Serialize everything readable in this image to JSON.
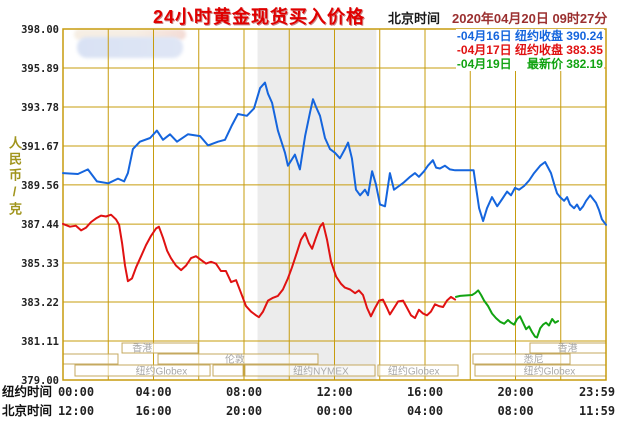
{
  "header": {
    "title": "24小时黄金现货买入价格",
    "timezone_label": "北京时间",
    "datetime": "2020年04月20日 09时27分"
  },
  "legend": {
    "items": [
      {
        "text": "-04月16日 纽约收盘 390.24",
        "color": "#1565dd"
      },
      {
        "text": "-04月17日 纽约收盘 383.35",
        "color": "#e01212"
      },
      {
        "text": "-04月19日　 最新价 382.19",
        "color": "#12a312"
      }
    ]
  },
  "y_axis": {
    "unit_label": "人民币/克",
    "tick_labels": [
      "398.00",
      "395.89",
      "393.78",
      "391.67",
      "389.56",
      "387.44",
      "385.33",
      "383.22",
      "381.11",
      "379.00"
    ]
  },
  "x_axis": {
    "row1_label": "纽约时间",
    "row2_label": "北京时间",
    "row1_ticks": [
      "00:00",
      "04:00",
      "08:00",
      "12:00",
      "16:00",
      "20:00",
      "23:59"
    ],
    "row2_ticks": [
      "12:00",
      "16:00",
      "20:00",
      "00:00",
      "04:00",
      "08:00",
      "11:59"
    ]
  },
  "sessions": [
    {
      "row": 1,
      "start": 2.61,
      "end": 5.97,
      "label": "香港",
      "label_h": 3.5
    },
    {
      "row": 1,
      "start": 20.64,
      "end": 24,
      "label": "香港",
      "label_h": 22.3
    },
    {
      "row": 2,
      "start": 0,
      "end": 2.43,
      "label": ""
    },
    {
      "row": 2,
      "start": 4.2,
      "end": 11.27,
      "label": "伦敦",
      "label_h": 7.6
    },
    {
      "row": 2,
      "start": 18.12,
      "end": 22.41,
      "label": "悉尼",
      "label_h": 20.8
    },
    {
      "row": 3,
      "start": 0.53,
      "end": 6.5,
      "label": "纽约Globex",
      "label_h": 4.35
    },
    {
      "row": 3,
      "start": 6.63,
      "end": 7.96,
      "label": ""
    },
    {
      "row": 3,
      "start": 8.04,
      "end": 13.79,
      "label": "纽约NYMEX",
      "label_h": 11.4
    },
    {
      "row": 3,
      "start": 13.92,
      "end": 17.46,
      "label": "纽约Globex",
      "label_h": 15.5
    },
    {
      "row": 3,
      "start": 18.21,
      "end": 24,
      "label": "纽约Globex",
      "label_h": 21.5
    }
  ],
  "chart_data": {
    "type": "line",
    "title": "24小时黄金现货买入价格",
    "xlabel": "纽约时间 (hours 0-24)",
    "ylabel": "人民币/克",
    "xlim": [
      0,
      24
    ],
    "ylim": [
      379.0,
      398.0
    ],
    "y_ticks": [
      398.0,
      395.89,
      393.78,
      391.67,
      389.56,
      387.44,
      385.33,
      383.22,
      381.11,
      379.0
    ],
    "grid_x_step_hours": 2,
    "grid_color": "#c79c0e",
    "band_color": "#ececec",
    "shaded_band_hours": [
      8.6,
      13.85
    ],
    "legend_position": "top-right",
    "series": [
      {
        "name": "04月16日",
        "label": "纽约收盘",
        "value": 390.24,
        "color": "#1565dd",
        "points": [
          [
            0,
            390.2
          ],
          [
            0.66,
            390.15
          ],
          [
            1.1,
            390.4
          ],
          [
            1.5,
            389.75
          ],
          [
            2.0,
            389.65
          ],
          [
            2.43,
            389.9
          ],
          [
            2.7,
            389.75
          ],
          [
            2.87,
            390.2
          ],
          [
            3.09,
            391.5
          ],
          [
            3.4,
            391.9
          ],
          [
            3.85,
            392.1
          ],
          [
            4.15,
            392.5
          ],
          [
            4.42,
            392.0
          ],
          [
            4.73,
            392.3
          ],
          [
            5.04,
            391.9
          ],
          [
            5.52,
            392.3
          ],
          [
            6.06,
            392.2
          ],
          [
            6.41,
            391.7
          ],
          [
            6.85,
            391.9
          ],
          [
            7.16,
            392.0
          ],
          [
            7.47,
            392.8
          ],
          [
            7.73,
            393.4
          ],
          [
            8.13,
            393.3
          ],
          [
            8.44,
            393.7
          ],
          [
            8.71,
            394.8
          ],
          [
            8.93,
            395.1
          ],
          [
            9.06,
            394.5
          ],
          [
            9.24,
            394.0
          ],
          [
            9.5,
            392.5
          ],
          [
            9.81,
            391.3
          ],
          [
            9.94,
            390.6
          ],
          [
            10.25,
            391.2
          ],
          [
            10.47,
            390.4
          ],
          [
            10.7,
            392.2
          ],
          [
            10.92,
            393.5
          ],
          [
            11.05,
            394.2
          ],
          [
            11.18,
            393.8
          ],
          [
            11.36,
            393.3
          ],
          [
            11.58,
            392.1
          ],
          [
            11.8,
            391.5
          ],
          [
            12.02,
            391.3
          ],
          [
            12.24,
            391.0
          ],
          [
            12.46,
            391.5
          ],
          [
            12.6,
            391.85
          ],
          [
            12.77,
            391.0
          ],
          [
            12.95,
            389.3
          ],
          [
            13.13,
            389.0
          ],
          [
            13.35,
            389.3
          ],
          [
            13.48,
            389.0
          ],
          [
            13.66,
            390.3
          ],
          [
            13.83,
            389.6
          ],
          [
            14.01,
            388.5
          ],
          [
            14.23,
            388.4
          ],
          [
            14.45,
            390.2
          ],
          [
            14.63,
            389.3
          ],
          [
            14.85,
            389.5
          ],
          [
            15.07,
            389.7
          ],
          [
            15.34,
            390.0
          ],
          [
            15.56,
            390.2
          ],
          [
            15.73,
            390.0
          ],
          [
            15.96,
            390.3
          ],
          [
            16.13,
            390.6
          ],
          [
            16.35,
            390.9
          ],
          [
            16.49,
            390.5
          ],
          [
            16.66,
            390.45
          ],
          [
            16.88,
            390.6
          ],
          [
            17.1,
            390.4
          ],
          [
            17.33,
            390.35
          ],
          [
            18.15,
            390.35
          ],
          [
            18.26,
            389.4
          ],
          [
            18.39,
            388.3
          ],
          [
            18.57,
            387.6
          ],
          [
            18.74,
            388.3
          ],
          [
            18.96,
            388.9
          ],
          [
            19.19,
            388.4
          ],
          [
            19.41,
            388.8
          ],
          [
            19.63,
            389.2
          ],
          [
            19.8,
            389.0
          ],
          [
            19.98,
            389.4
          ],
          [
            20.16,
            389.3
          ],
          [
            20.38,
            389.5
          ],
          [
            20.6,
            389.8
          ],
          [
            20.82,
            390.2
          ],
          [
            21.09,
            390.6
          ],
          [
            21.31,
            390.8
          ],
          [
            21.44,
            390.5
          ],
          [
            21.57,
            390.2
          ],
          [
            21.71,
            389.6
          ],
          [
            21.84,
            389.1
          ],
          [
            21.97,
            388.9
          ],
          [
            22.15,
            388.7
          ],
          [
            22.28,
            388.9
          ],
          [
            22.41,
            388.5
          ],
          [
            22.59,
            388.3
          ],
          [
            22.72,
            388.5
          ],
          [
            22.85,
            388.2
          ],
          [
            22.99,
            388.4
          ],
          [
            23.12,
            388.7
          ],
          [
            23.3,
            389.0
          ],
          [
            23.43,
            388.8
          ],
          [
            23.56,
            388.6
          ],
          [
            23.69,
            388.2
          ],
          [
            23.82,
            387.7
          ],
          [
            24,
            387.4
          ]
        ]
      },
      {
        "name": "04月17日",
        "label": "纽约收盘",
        "value": 383.35,
        "color": "#e01212",
        "points": [
          [
            0,
            387.45
          ],
          [
            0.31,
            387.3
          ],
          [
            0.57,
            387.35
          ],
          [
            0.8,
            387.1
          ],
          [
            1.02,
            387.25
          ],
          [
            1.24,
            387.55
          ],
          [
            1.46,
            387.75
          ],
          [
            1.68,
            387.9
          ],
          [
            1.9,
            387.85
          ],
          [
            2.12,
            387.95
          ],
          [
            2.34,
            387.7
          ],
          [
            2.48,
            387.4
          ],
          [
            2.61,
            386.4
          ],
          [
            2.74,
            385.2
          ],
          [
            2.87,
            384.35
          ],
          [
            3.05,
            384.5
          ],
          [
            3.23,
            385.1
          ],
          [
            3.45,
            385.7
          ],
          [
            3.67,
            386.3
          ],
          [
            3.89,
            386.8
          ],
          [
            4.11,
            387.2
          ],
          [
            4.24,
            387.3
          ],
          [
            4.42,
            386.7
          ],
          [
            4.6,
            386.0
          ],
          [
            4.77,
            385.6
          ],
          [
            4.99,
            385.2
          ],
          [
            5.22,
            384.95
          ],
          [
            5.44,
            385.2
          ],
          [
            5.66,
            385.6
          ],
          [
            5.88,
            385.7
          ],
          [
            6.1,
            385.5
          ],
          [
            6.32,
            385.3
          ],
          [
            6.54,
            385.4
          ],
          [
            6.76,
            385.3
          ],
          [
            6.98,
            384.9
          ],
          [
            7.2,
            384.9
          ],
          [
            7.43,
            384.3
          ],
          [
            7.65,
            384.4
          ],
          [
            7.87,
            383.7
          ],
          [
            8.09,
            383.0
          ],
          [
            8.31,
            382.7
          ],
          [
            8.53,
            382.5
          ],
          [
            8.66,
            382.4
          ],
          [
            8.84,
            382.7
          ],
          [
            9.06,
            383.3
          ],
          [
            9.28,
            383.45
          ],
          [
            9.5,
            383.55
          ],
          [
            9.72,
            383.9
          ],
          [
            9.94,
            384.5
          ],
          [
            10.12,
            385.1
          ],
          [
            10.34,
            385.9
          ],
          [
            10.52,
            386.6
          ],
          [
            10.7,
            386.95
          ],
          [
            10.87,
            386.4
          ],
          [
            11.01,
            386.1
          ],
          [
            11.18,
            386.7
          ],
          [
            11.36,
            387.3
          ],
          [
            11.49,
            387.5
          ],
          [
            11.67,
            386.6
          ],
          [
            11.85,
            385.4
          ],
          [
            12.07,
            384.6
          ],
          [
            12.29,
            384.2
          ],
          [
            12.46,
            384.0
          ],
          [
            12.69,
            383.9
          ],
          [
            12.91,
            383.7
          ],
          [
            13.08,
            383.85
          ],
          [
            13.26,
            383.6
          ],
          [
            13.44,
            382.9
          ],
          [
            13.61,
            382.45
          ],
          [
            13.79,
            382.9
          ],
          [
            13.97,
            383.3
          ],
          [
            14.14,
            383.35
          ],
          [
            14.32,
            382.9
          ],
          [
            14.45,
            382.55
          ],
          [
            14.63,
            382.9
          ],
          [
            14.81,
            383.25
          ],
          [
            15.03,
            383.3
          ],
          [
            15.21,
            382.9
          ],
          [
            15.38,
            382.5
          ],
          [
            15.56,
            382.35
          ],
          [
            15.73,
            382.8
          ],
          [
            15.91,
            382.6
          ],
          [
            16.09,
            382.5
          ],
          [
            16.26,
            382.7
          ],
          [
            16.44,
            383.1
          ],
          [
            16.62,
            383.0
          ],
          [
            16.8,
            382.95
          ],
          [
            16.97,
            383.3
          ],
          [
            17.15,
            383.5
          ],
          [
            17.33,
            383.35
          ]
        ]
      },
      {
        "name": "04月19日",
        "label": "最新价",
        "value": 382.19,
        "color": "#12a312",
        "points": [
          [
            17.37,
            383.5
          ],
          [
            17.55,
            383.55
          ],
          [
            18.08,
            383.6
          ],
          [
            18.21,
            383.7
          ],
          [
            18.35,
            383.85
          ],
          [
            18.48,
            383.6
          ],
          [
            18.61,
            383.3
          ],
          [
            18.79,
            383.0
          ],
          [
            18.96,
            382.6
          ],
          [
            19.14,
            382.35
          ],
          [
            19.32,
            382.15
          ],
          [
            19.5,
            382.05
          ],
          [
            19.67,
            382.25
          ],
          [
            19.8,
            382.1
          ],
          [
            19.94,
            382.0
          ],
          [
            20.07,
            382.3
          ],
          [
            20.2,
            382.45
          ],
          [
            20.33,
            382.1
          ],
          [
            20.47,
            381.75
          ],
          [
            20.6,
            381.9
          ],
          [
            20.73,
            381.6
          ],
          [
            20.86,
            381.35
          ],
          [
            20.95,
            381.3
          ],
          [
            21.09,
            381.8
          ],
          [
            21.22,
            382.0
          ],
          [
            21.35,
            382.1
          ],
          [
            21.48,
            381.95
          ],
          [
            21.62,
            382.3
          ],
          [
            21.75,
            382.1
          ],
          [
            21.88,
            382.19
          ]
        ]
      }
    ]
  }
}
